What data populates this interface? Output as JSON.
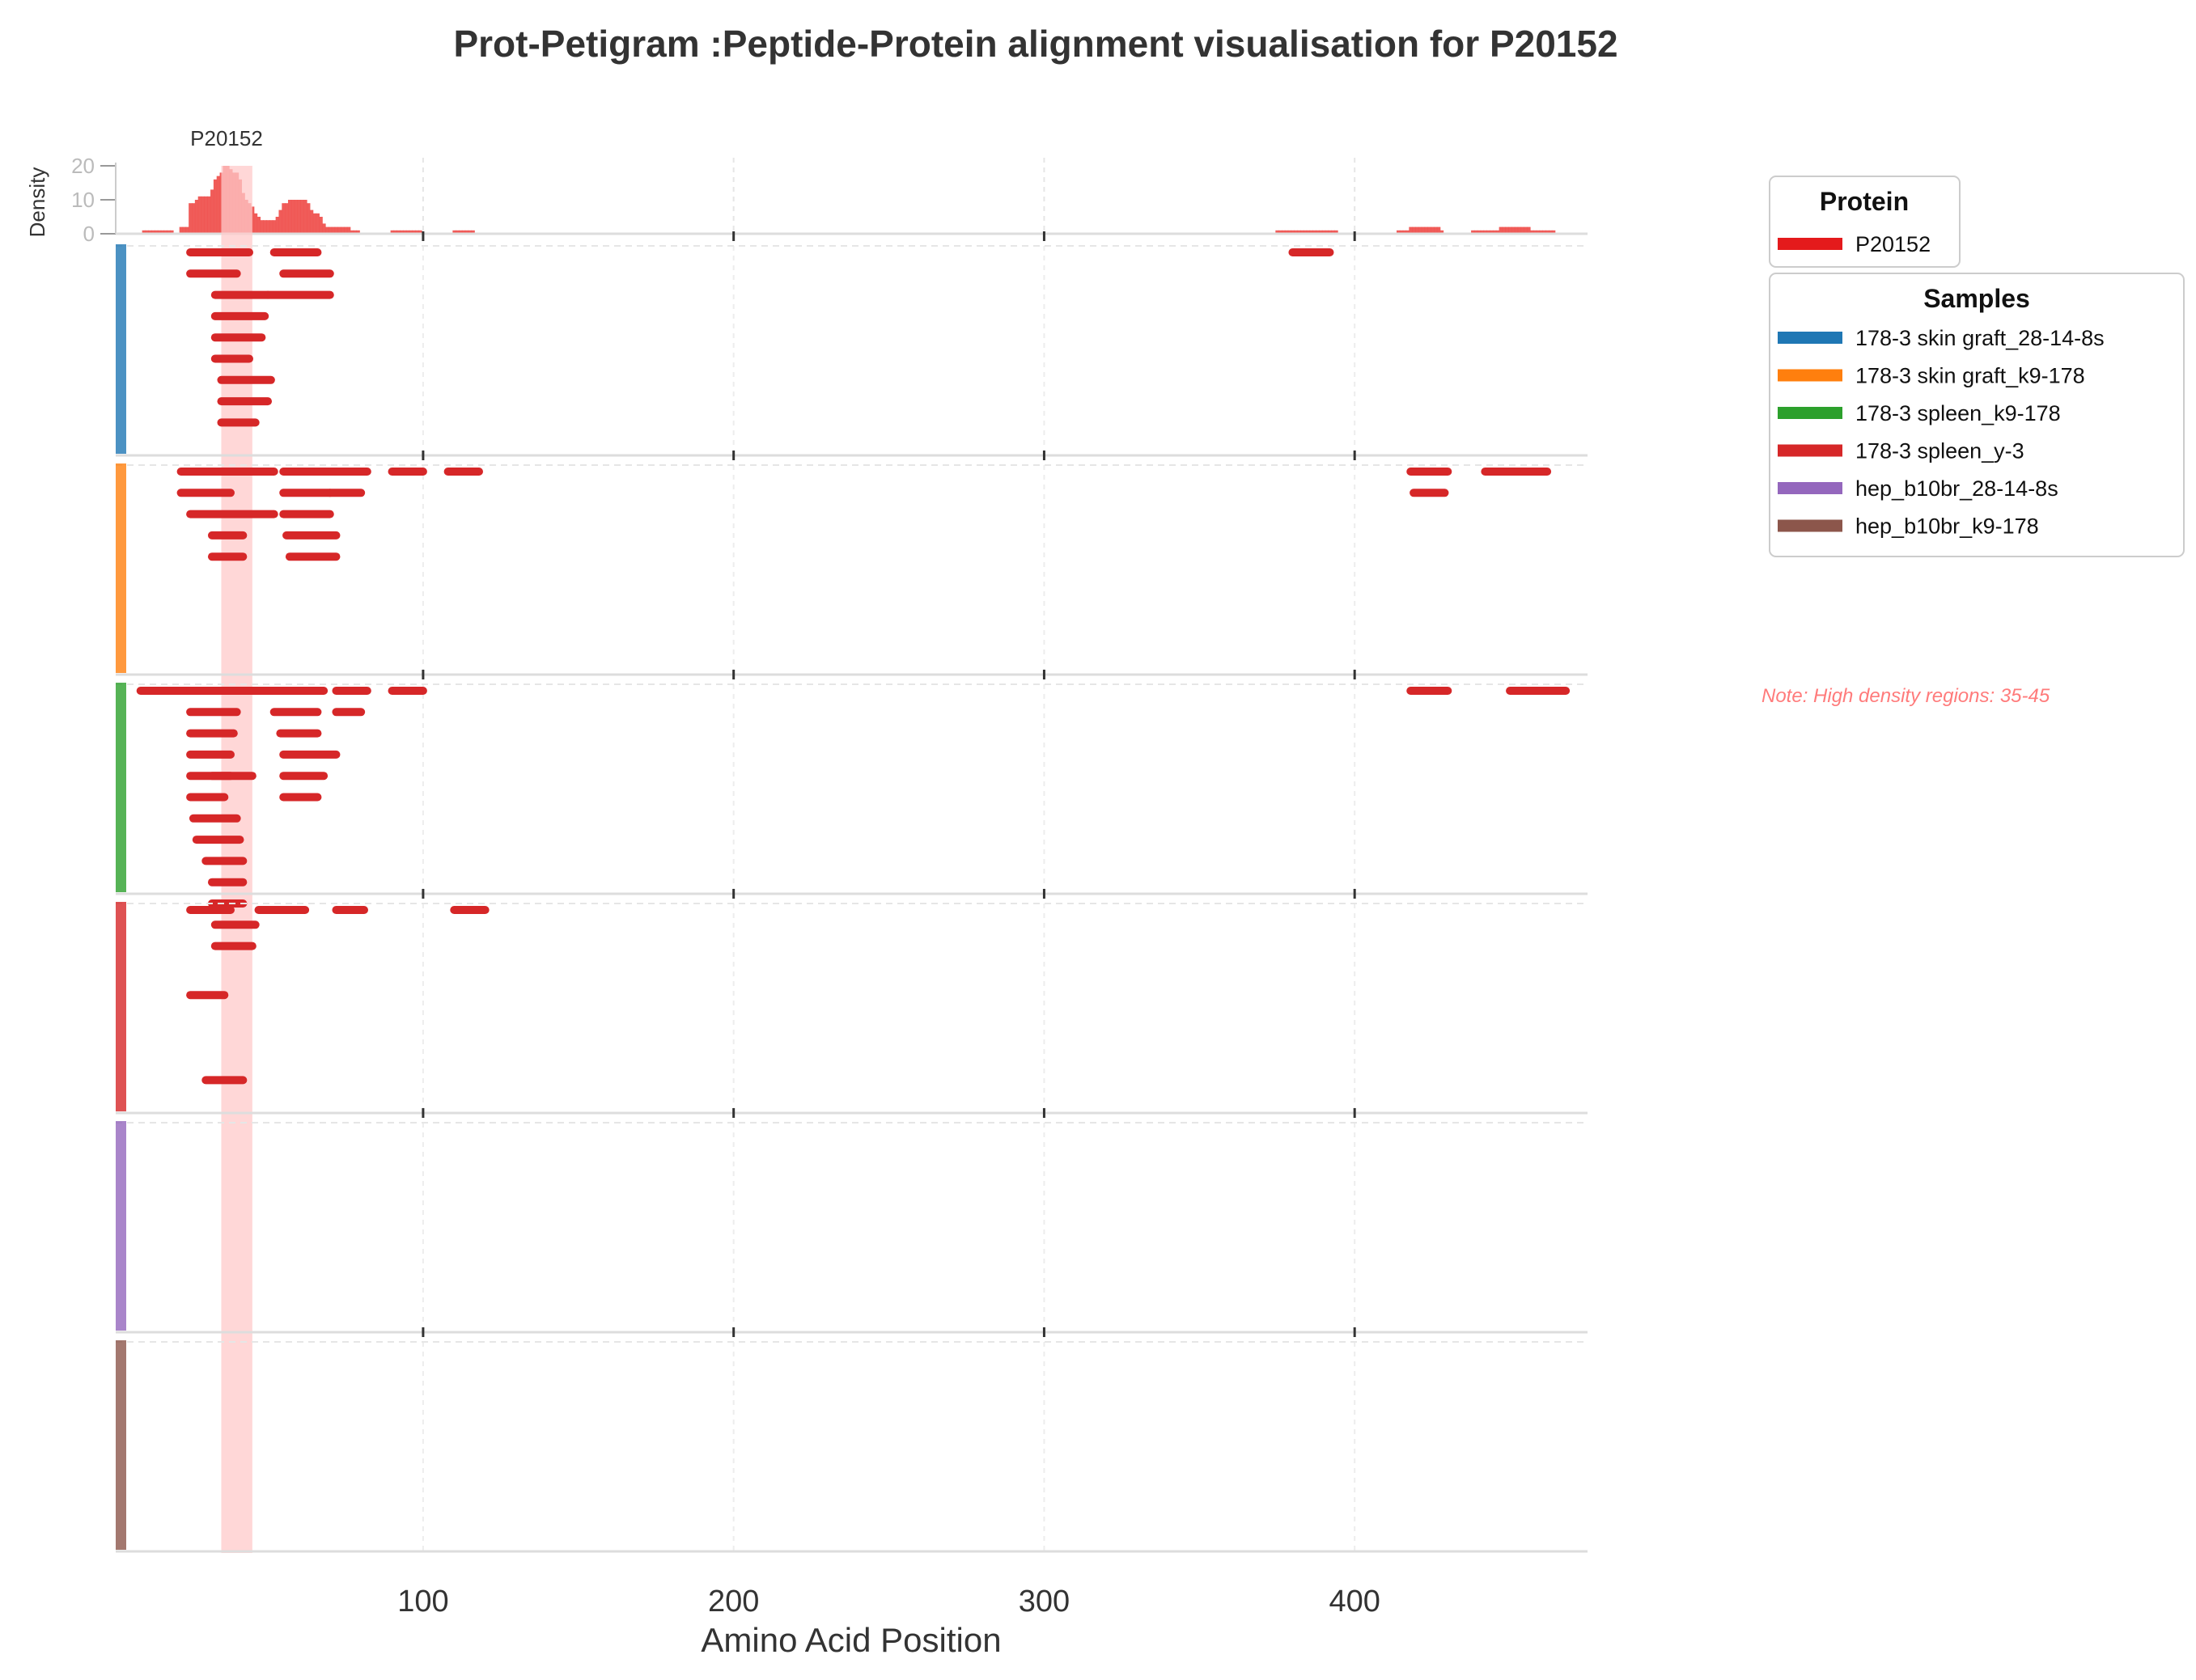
{
  "chart_data": {
    "type": "peptide-alignment",
    "title": "Prot-Petigram :Peptide-Protein alignment visualisation for P20152",
    "xlabel": "Amino Acid Position",
    "density_ylabel": "Density",
    "density_yticks": [
      "0",
      "10",
      "20"
    ],
    "protein_label": "P20152",
    "xlim": [
      1,
      475
    ],
    "xticks": [
      100,
      200,
      300,
      400
    ],
    "xtick_labels": [
      "100",
      "200",
      "300",
      "400"
    ],
    "highlight_region": [
      35,
      45
    ],
    "note": "Note: High density regions: 35-45",
    "peptide_color": "#d62728",
    "density_color": "#ef5350",
    "highlight_color": "#ffc9c9",
    "density_bins": [
      [
        10,
        1
      ],
      [
        11,
        1
      ],
      [
        12,
        1
      ],
      [
        13,
        1
      ],
      [
        14,
        1
      ],
      [
        15,
        1
      ],
      [
        16,
        1
      ],
      [
        17,
        1
      ],
      [
        18,
        1
      ],
      [
        19,
        1
      ],
      [
        22,
        2
      ],
      [
        23,
        2
      ],
      [
        24,
        2
      ],
      [
        25,
        9
      ],
      [
        26,
        9
      ],
      [
        27,
        10
      ],
      [
        28,
        11
      ],
      [
        29,
        11
      ],
      [
        30,
        11
      ],
      [
        31,
        11
      ],
      [
        32,
        13
      ],
      [
        33,
        16
      ],
      [
        34,
        17
      ],
      [
        35,
        18
      ],
      [
        36,
        20
      ],
      [
        37,
        20
      ],
      [
        38,
        19
      ],
      [
        39,
        18
      ],
      [
        40,
        18
      ],
      [
        41,
        16
      ],
      [
        42,
        12
      ],
      [
        43,
        10
      ],
      [
        44,
        9
      ],
      [
        45,
        8
      ],
      [
        46,
        6
      ],
      [
        47,
        5
      ],
      [
        48,
        4
      ],
      [
        49,
        4
      ],
      [
        50,
        4
      ],
      [
        51,
        4
      ],
      [
        52,
        4
      ],
      [
        53,
        5
      ],
      [
        54,
        7
      ],
      [
        55,
        9
      ],
      [
        56,
        9
      ],
      [
        57,
        10
      ],
      [
        58,
        10
      ],
      [
        59,
        10
      ],
      [
        60,
        10
      ],
      [
        61,
        10
      ],
      [
        62,
        10
      ],
      [
        63,
        9
      ],
      [
        64,
        7
      ],
      [
        65,
        6
      ],
      [
        66,
        6
      ],
      [
        67,
        5
      ],
      [
        68,
        3
      ],
      [
        69,
        2
      ],
      [
        70,
        2
      ],
      [
        71,
        2
      ],
      [
        72,
        2
      ],
      [
        73,
        2
      ],
      [
        74,
        2
      ],
      [
        75,
        2
      ],
      [
        76,
        2
      ],
      [
        77,
        1
      ],
      [
        78,
        1
      ],
      [
        79,
        1
      ],
      [
        90,
        1
      ],
      [
        91,
        1
      ],
      [
        92,
        1
      ],
      [
        93,
        1
      ],
      [
        94,
        1
      ],
      [
        95,
        1
      ],
      [
        96,
        1
      ],
      [
        97,
        1
      ],
      [
        98,
        1
      ],
      [
        99,
        1
      ],
      [
        110,
        1
      ],
      [
        111,
        1
      ],
      [
        112,
        1
      ],
      [
        113,
        1
      ],
      [
        114,
        1
      ],
      [
        115,
        1
      ],
      [
        116,
        1
      ],
      [
        375,
        1
      ],
      [
        376,
        1
      ],
      [
        377,
        1
      ],
      [
        378,
        1
      ],
      [
        379,
        1
      ],
      [
        380,
        1
      ],
      [
        381,
        1
      ],
      [
        382,
        1
      ],
      [
        383,
        1
      ],
      [
        384,
        1
      ],
      [
        385,
        1
      ],
      [
        386,
        1
      ],
      [
        387,
        1
      ],
      [
        388,
        1
      ],
      [
        389,
        1
      ],
      [
        390,
        1
      ],
      [
        391,
        1
      ],
      [
        392,
        1
      ],
      [
        393,
        1
      ],
      [
        394,
        1
      ],
      [
        414,
        1
      ],
      [
        415,
        1
      ],
      [
        416,
        1
      ],
      [
        417,
        1
      ],
      [
        418,
        2
      ],
      [
        419,
        2
      ],
      [
        420,
        2
      ],
      [
        421,
        2
      ],
      [
        422,
        2
      ],
      [
        423,
        2
      ],
      [
        424,
        2
      ],
      [
        425,
        2
      ],
      [
        426,
        2
      ],
      [
        427,
        2
      ],
      [
        428,
        1
      ],
      [
        438,
        1
      ],
      [
        439,
        1
      ],
      [
        440,
        1
      ],
      [
        441,
        1
      ],
      [
        442,
        1
      ],
      [
        443,
        1
      ],
      [
        444,
        1
      ],
      [
        445,
        1
      ],
      [
        446,
        1
      ],
      [
        447,
        2
      ],
      [
        448,
        2
      ],
      [
        449,
        2
      ],
      [
        450,
        2
      ],
      [
        451,
        2
      ],
      [
        452,
        2
      ],
      [
        453,
        2
      ],
      [
        454,
        2
      ],
      [
        455,
        2
      ],
      [
        456,
        2
      ],
      [
        457,
        1
      ],
      [
        458,
        1
      ],
      [
        459,
        1
      ],
      [
        460,
        1
      ],
      [
        461,
        1
      ],
      [
        462,
        1
      ],
      [
        463,
        1
      ],
      [
        464,
        1
      ]
    ],
    "samples": [
      {
        "name": "178-3 skin graft_28-14-8s",
        "color": "#1f77b4",
        "peptides": [
          [
            25,
            44,
            0
          ],
          [
            52,
            66,
            0
          ],
          [
            380,
            392,
            0
          ],
          [
            25,
            40,
            1
          ],
          [
            55,
            70,
            1
          ],
          [
            33,
            50,
            2
          ],
          [
            50,
            70,
            2
          ],
          [
            33,
            49,
            3
          ],
          [
            33,
            48,
            4
          ],
          [
            33,
            44,
            5
          ],
          [
            35,
            51,
            6
          ],
          [
            35,
            50,
            7
          ],
          [
            35,
            46,
            8
          ]
        ]
      },
      {
        "name": "178-3 skin graft_k9-178",
        "color": "#ff7f0e",
        "peptides": [
          [
            22,
            52,
            0
          ],
          [
            55,
            65,
            0
          ],
          [
            65,
            72,
            0
          ],
          [
            72,
            82,
            0
          ],
          [
            90,
            100,
            0
          ],
          [
            108,
            118,
            0
          ],
          [
            418,
            430,
            0
          ],
          [
            442,
            462,
            0
          ],
          [
            22,
            38,
            1
          ],
          [
            55,
            70,
            1
          ],
          [
            70,
            80,
            1
          ],
          [
            419,
            429,
            1
          ],
          [
            25,
            52,
            2
          ],
          [
            55,
            70,
            2
          ],
          [
            32,
            42,
            3
          ],
          [
            56,
            72,
            3
          ],
          [
            32,
            42,
            4
          ],
          [
            57,
            72,
            4
          ]
        ]
      },
      {
        "name": "178-3 spleen_k9-178",
        "color": "#2ca02c",
        "peptides": [
          [
            9,
            25,
            0
          ],
          [
            25,
            52,
            0
          ],
          [
            52,
            68,
            0
          ],
          [
            72,
            82,
            0
          ],
          [
            90,
            100,
            0
          ],
          [
            418,
            430,
            0
          ],
          [
            450,
            468,
            0
          ],
          [
            25,
            40,
            1
          ],
          [
            52,
            66,
            1
          ],
          [
            72,
            80,
            1
          ],
          [
            25,
            39,
            2
          ],
          [
            54,
            66,
            2
          ],
          [
            25,
            38,
            3
          ],
          [
            55,
            72,
            3
          ],
          [
            25,
            38,
            4
          ],
          [
            32,
            45,
            4
          ],
          [
            55,
            68,
            4
          ],
          [
            25,
            36,
            5
          ],
          [
            55,
            66,
            5
          ],
          [
            26,
            40,
            6
          ],
          [
            27,
            41,
            7
          ],
          [
            30,
            42,
            8
          ],
          [
            32,
            42,
            9
          ],
          [
            32,
            42,
            10
          ],
          [
            33,
            46,
            11
          ],
          [
            33,
            45,
            12
          ]
        ]
      },
      {
        "name": "178-3 spleen_y-3",
        "color": "#d62728",
        "peptides": [
          [
            25,
            38,
            0
          ],
          [
            47,
            62,
            0
          ],
          [
            72,
            81,
            0
          ],
          [
            110,
            120,
            0
          ],
          [
            25,
            36,
            4
          ],
          [
            30,
            42,
            8
          ]
        ]
      },
      {
        "name": "hep_b10br_28-14-8s",
        "color": "#9467bd",
        "peptides": []
      },
      {
        "name": "hep_b10br_k9-178",
        "color": "#8c564b",
        "peptides": []
      }
    ],
    "legend_protein_title": "Protein",
    "legend_samples_title": "Samples",
    "legend_placement": "right"
  }
}
